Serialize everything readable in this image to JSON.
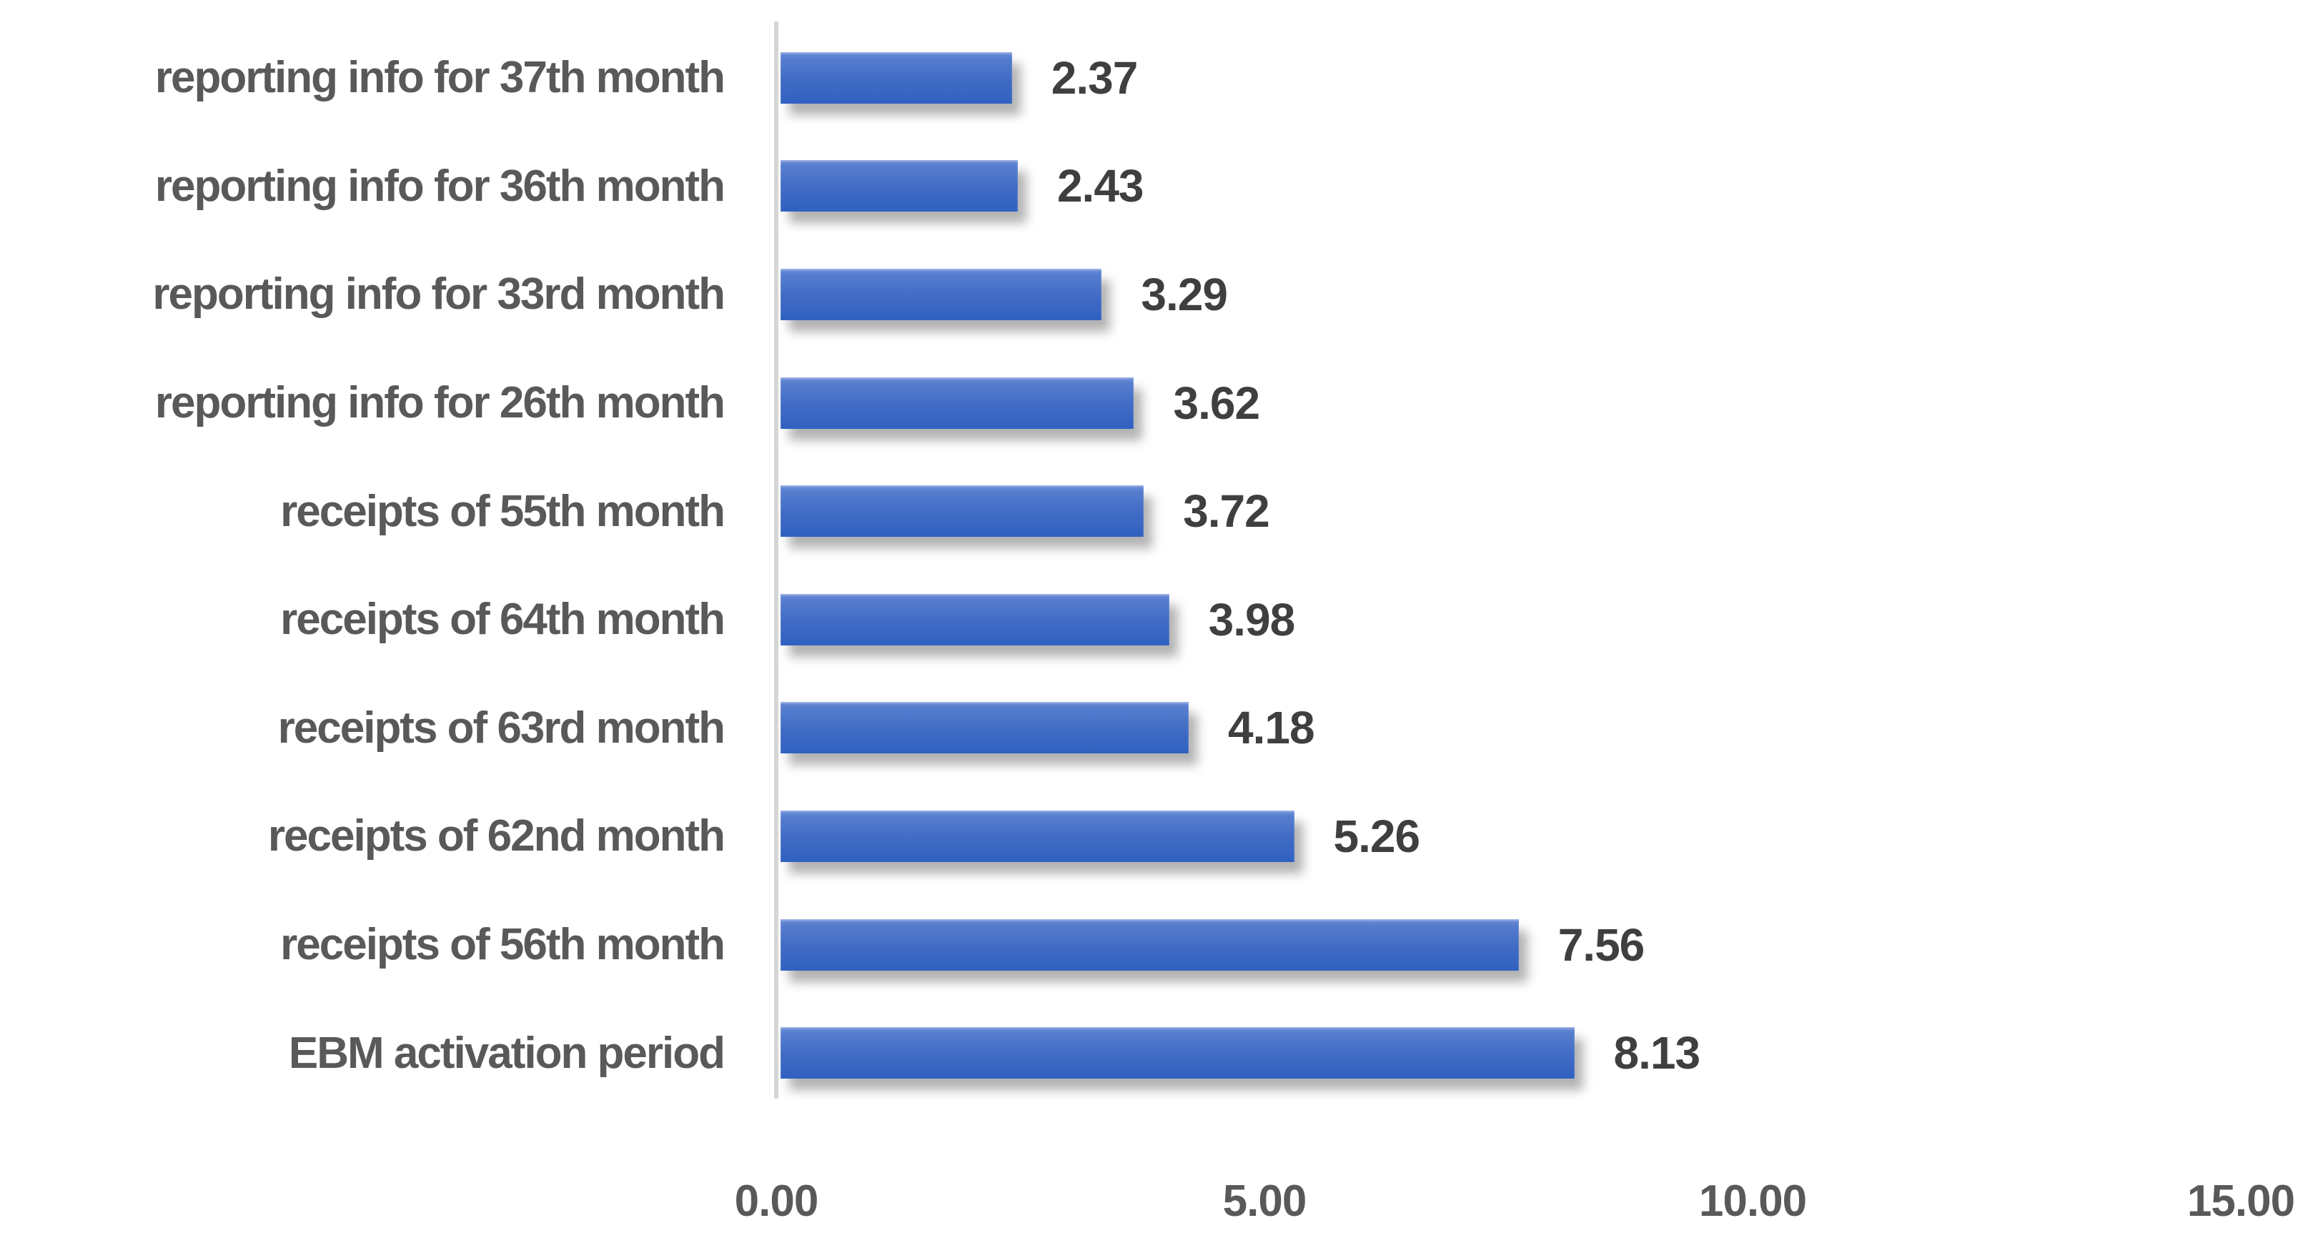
{
  "chart_data": {
    "type": "bar",
    "orientation": "horizontal",
    "title": "",
    "xlabel": "",
    "ylabel": "",
    "categories": [
      "reporting info for 37th month",
      "reporting info for 36th month",
      "reporting info for 33rd month",
      "reporting info for 26th month",
      "receipts of 55th month",
      "receipts of 64th month",
      "receipts of 63rd month",
      "receipts of 62nd month",
      "receipts of 56th month",
      "EBM activation period"
    ],
    "values": [
      2.37,
      2.43,
      3.29,
      3.62,
      3.72,
      3.98,
      4.18,
      5.26,
      7.56,
      8.13
    ],
    "value_labels": [
      "2.37",
      "2.43",
      "3.29",
      "3.62",
      "3.72",
      "3.98",
      "4.18",
      "5.26",
      "7.56",
      "8.13"
    ],
    "xlim": [
      0,
      15
    ],
    "x_ticks": [
      {
        "value": 0,
        "label": "0.00"
      },
      {
        "value": 5,
        "label": "5.00"
      },
      {
        "value": 10,
        "label": "10.00"
      },
      {
        "value": 15,
        "label": "15.00"
      }
    ],
    "grid": false,
    "legend": false,
    "colors": {
      "bar_gradient_top": "#6d8ed7",
      "bar_gradient_bottom": "#3061c0",
      "bar_shadow": "#9e9e9e",
      "axis_line": "#d6d6d6",
      "category_label": "#595959",
      "value_label": "#3f3f3f",
      "tick_label": "#595959",
      "background": "#ffffff"
    }
  }
}
